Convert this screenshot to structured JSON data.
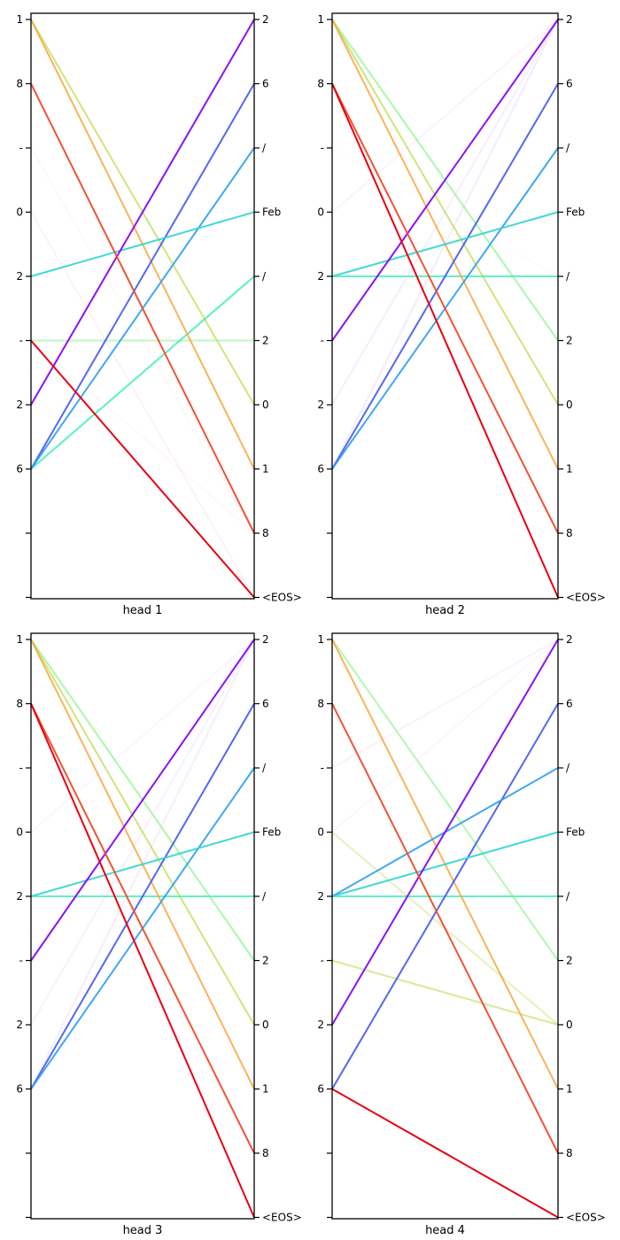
{
  "tokens": {
    "left": [
      "1",
      "8",
      "-",
      "0",
      "2",
      "-",
      "2",
      "6",
      "",
      ""
    ],
    "right": [
      "2",
      "6",
      "/",
      "Feb",
      "/",
      "2",
      "0",
      "1",
      "8",
      "<EOS>"
    ]
  },
  "palette": {
    "background": "#ffffff",
    "axis_color": "#000000",
    "text_color": "#000000",
    "edge_colors_by_right_token": [
      "#8405f5",
      "#4156f2",
      "#2e9df0",
      "#2fd5d0",
      "#3deeb5",
      "#7df57d",
      "#bedc52",
      "#fba43e",
      "#f04a28",
      "#e80010"
    ]
  },
  "chart_data": [
    {
      "type": "bipartite-attention",
      "title": "head 1",
      "left_tokens": [
        "1",
        "8",
        "-",
        "0",
        "2",
        "-",
        "2",
        "6",
        "",
        ""
      ],
      "right_tokens": [
        "2",
        "6",
        "/",
        "Feb",
        "/",
        "2",
        "0",
        "1",
        "8",
        "<EOS>"
      ],
      "edges": [
        {
          "l": 6,
          "r": 0,
          "a": 0.95
        },
        {
          "l": 7,
          "r": 1,
          "a": 0.9
        },
        {
          "l": 7,
          "r": 2,
          "a": 0.9
        },
        {
          "l": 4,
          "r": 3,
          "a": 0.9
        },
        {
          "l": 7,
          "r": 4,
          "a": 0.85
        },
        {
          "l": 5,
          "r": 5,
          "a": 0.5
        },
        {
          "l": 0,
          "r": 6,
          "a": 0.75
        },
        {
          "l": 0,
          "r": 7,
          "a": 0.85
        },
        {
          "l": 1,
          "r": 8,
          "a": 0.95
        },
        {
          "l": 5,
          "r": 9,
          "a": 1.0
        },
        {
          "l": 3,
          "r": 9,
          "a": 0.05
        },
        {
          "l": 2,
          "r": 8,
          "a": 0.04
        },
        {
          "l": 5,
          "r": 8,
          "a": 0.04
        }
      ]
    },
    {
      "type": "bipartite-attention",
      "title": "head 2",
      "left_tokens": [
        "1",
        "8",
        "-",
        "0",
        "2",
        "-",
        "2",
        "6",
        "",
        ""
      ],
      "right_tokens": [
        "2",
        "6",
        "/",
        "Feb",
        "/",
        "2",
        "0",
        "1",
        "8",
        "<EOS>"
      ],
      "edges": [
        {
          "l": 5,
          "r": 0,
          "a": 0.95
        },
        {
          "l": 7,
          "r": 1,
          "a": 0.9
        },
        {
          "l": 7,
          "r": 2,
          "a": 0.9
        },
        {
          "l": 4,
          "r": 3,
          "a": 0.9
        },
        {
          "l": 4,
          "r": 4,
          "a": 0.8
        },
        {
          "l": 0,
          "r": 5,
          "a": 0.65
        },
        {
          "l": 0,
          "r": 6,
          "a": 0.75
        },
        {
          "l": 0,
          "r": 7,
          "a": 0.85
        },
        {
          "l": 1,
          "r": 8,
          "a": 0.95
        },
        {
          "l": 1,
          "r": 9,
          "a": 1.0
        },
        {
          "l": 6,
          "r": 0,
          "a": 0.07
        },
        {
          "l": 7,
          "r": 0,
          "a": 0.08
        },
        {
          "l": 3,
          "r": 0,
          "a": 0.05
        },
        {
          "l": 2,
          "r": 4,
          "a": 0.04
        }
      ]
    },
    {
      "type": "bipartite-attention",
      "title": "head 3",
      "left_tokens": [
        "1",
        "8",
        "-",
        "0",
        "2",
        "-",
        "2",
        "6",
        "",
        ""
      ],
      "right_tokens": [
        "2",
        "6",
        "/",
        "Feb",
        "/",
        "2",
        "0",
        "1",
        "8",
        "<EOS>"
      ],
      "edges": [
        {
          "l": 5,
          "r": 0,
          "a": 0.95
        },
        {
          "l": 7,
          "r": 1,
          "a": 0.9
        },
        {
          "l": 7,
          "r": 2,
          "a": 0.9
        },
        {
          "l": 4,
          "r": 3,
          "a": 0.9
        },
        {
          "l": 4,
          "r": 4,
          "a": 0.8
        },
        {
          "l": 0,
          "r": 5,
          "a": 0.65
        },
        {
          "l": 0,
          "r": 6,
          "a": 0.75
        },
        {
          "l": 0,
          "r": 7,
          "a": 0.85
        },
        {
          "l": 1,
          "r": 8,
          "a": 0.95
        },
        {
          "l": 1,
          "r": 9,
          "a": 1.0
        },
        {
          "l": 6,
          "r": 0,
          "a": 0.06
        },
        {
          "l": 7,
          "r": 0,
          "a": 0.07
        },
        {
          "l": 3,
          "r": 0,
          "a": 0.04
        }
      ]
    },
    {
      "type": "bipartite-attention",
      "title": "head 4",
      "left_tokens": [
        "1",
        "8",
        "-",
        "0",
        "2",
        "-",
        "2",
        "6",
        "",
        ""
      ],
      "right_tokens": [
        "2",
        "6",
        "/",
        "Feb",
        "/",
        "2",
        "0",
        "1",
        "8",
        "<EOS>"
      ],
      "edges": [
        {
          "l": 6,
          "r": 0,
          "a": 0.95
        },
        {
          "l": 7,
          "r": 1,
          "a": 0.9
        },
        {
          "l": 4,
          "r": 2,
          "a": 0.9
        },
        {
          "l": 4,
          "r": 3,
          "a": 0.9
        },
        {
          "l": 4,
          "r": 4,
          "a": 0.8
        },
        {
          "l": 0,
          "r": 5,
          "a": 0.6
        },
        {
          "l": 3,
          "r": 6,
          "a": 0.4
        },
        {
          "l": 5,
          "r": 6,
          "a": 0.6
        },
        {
          "l": 0,
          "r": 7,
          "a": 0.85
        },
        {
          "l": 1,
          "r": 8,
          "a": 0.95
        },
        {
          "l": 7,
          "r": 9,
          "a": 1.0
        },
        {
          "l": 2,
          "r": 0,
          "a": 0.05
        },
        {
          "l": 3,
          "r": 0,
          "a": 0.04
        }
      ]
    }
  ]
}
